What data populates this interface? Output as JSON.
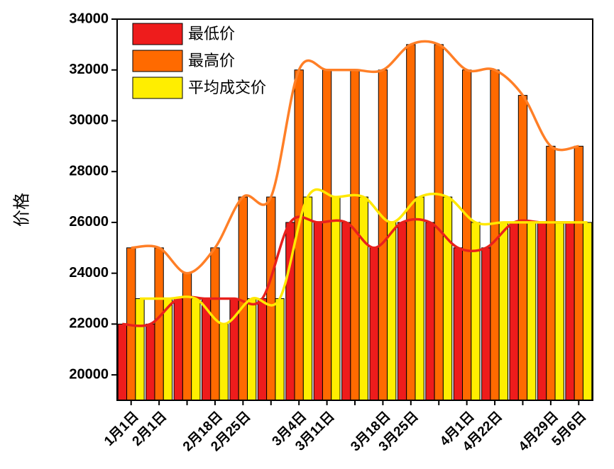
{
  "chart_data": {
    "type": "bar",
    "ylabel": "价格",
    "categories": [
      "1月1日",
      "2月1日",
      null,
      "2月18日",
      "2月25日",
      null,
      "3月4日",
      "3月11日",
      null,
      "3月18日",
      "3月25日",
      null,
      "4月1日",
      "4月22日",
      null,
      "4月29日",
      "5月6日"
    ],
    "series": [
      {
        "name": "最低价",
        "color": "#ee1c1c",
        "line_color": "#e8201c",
        "values": [
          22000,
          22000,
          23000,
          23000,
          23000,
          23000,
          26000,
          26000,
          26000,
          25000,
          26000,
          26000,
          25000,
          25000,
          26000,
          26000,
          26000
        ]
      },
      {
        "name": "最高价",
        "color": "#ff6a00",
        "line_color": "#ff7f27",
        "values": [
          25000,
          25000,
          24000,
          25000,
          27000,
          27000,
          32000,
          32000,
          32000,
          32000,
          33000,
          33000,
          32000,
          32000,
          31000,
          29000,
          29000
        ]
      },
      {
        "name": "平均成交价",
        "color": "#ffee00",
        "line_color": "#ffe800",
        "values": [
          23000,
          23000,
          23000,
          22000,
          23000,
          23000,
          27000,
          27000,
          27000,
          26000,
          27000,
          27000,
          26000,
          26000,
          26000,
          26000,
          26000
        ]
      }
    ],
    "ylim": [
      19000,
      34000
    ],
    "yticks": [
      20000,
      22000,
      24000,
      26000,
      28000,
      30000,
      32000,
      34000
    ],
    "legend": "upper left"
  }
}
